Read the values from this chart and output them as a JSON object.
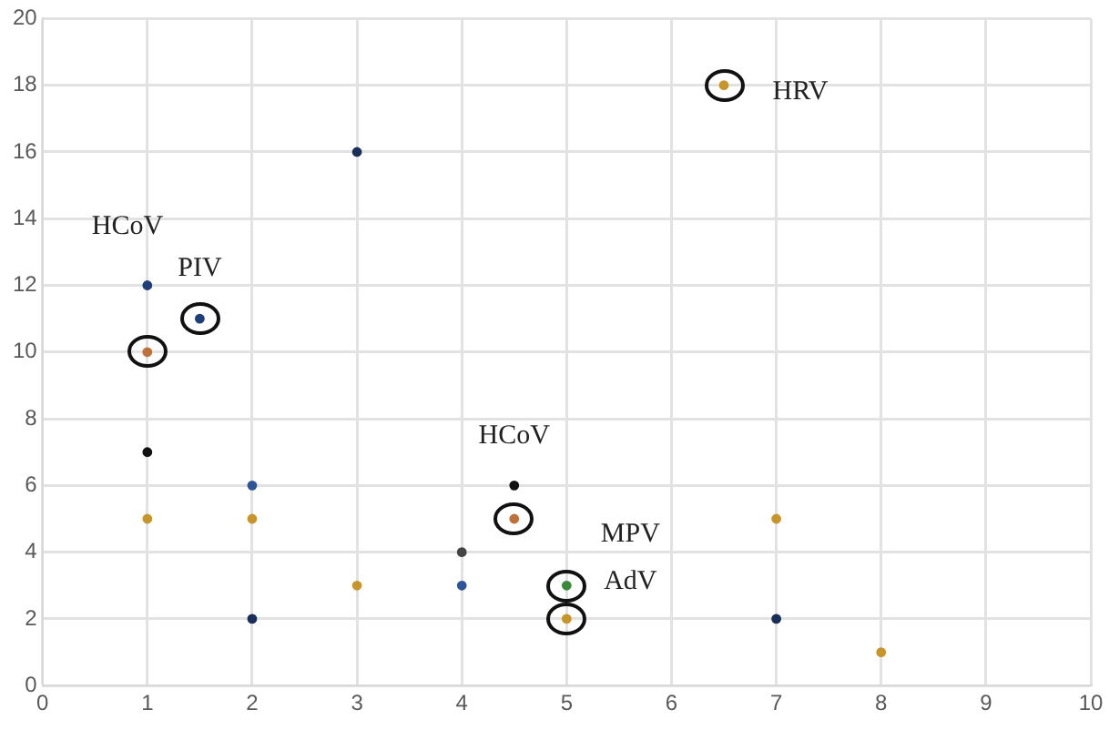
{
  "chart_data": {
    "type": "scatter",
    "xlim": [
      0,
      10
    ],
    "xticks": [
      0,
      1,
      2,
      3,
      4,
      5,
      6,
      7,
      8,
      9,
      10
    ],
    "ylim": [
      0,
      20
    ],
    "yticks": [
      0,
      2,
      4,
      6,
      8,
      10,
      12,
      14,
      16,
      18,
      20
    ],
    "grid": true,
    "legend": false,
    "marker": "circle",
    "series": [
      {
        "x": [
          1,
          1,
          1,
          2,
          2,
          2,
          3,
          3,
          4,
          4,
          4.5,
          7,
          7,
          8
        ],
        "values": [
          12,
          7,
          5,
          6,
          5,
          2,
          16,
          3,
          4,
          3,
          6,
          5,
          2,
          1
        ],
        "colors": [
          "#1f3f78",
          "#111111",
          "#c8952a",
          "#2f5597",
          "#c8952a",
          "#1a2e5a",
          "#1a2e5a",
          "#c8952a",
          "#444444",
          "#2f5597",
          "#111111",
          "#c8952a",
          "#1a2e5a",
          "#c8952a"
        ]
      },
      {
        "x": [
          1.5,
          1,
          4.5,
          5,
          5,
          6.5
        ],
        "values": [
          11,
          10,
          5,
          3,
          2,
          18
        ],
        "colors": [
          "#1f3f78",
          "#c0703a",
          "#c0703a",
          "#3a8a3a",
          "#c8952a",
          "#c8952a"
        ]
      }
    ],
    "annotations": [
      "HCoV",
      {
        "text": "PIV",
        "x": 1.5,
        "y": 11
      },
      {
        "text": "HCoV",
        "x": 4.5,
        "y": 5
      },
      {
        "text": "MPV",
        "x": 5,
        "y": 3
      },
      {
        "text": "AdV",
        "x": 5,
        "y": 2
      },
      {
        "text": "HRV",
        "x": 6.5,
        "y": 18
      }
    ]
  }
}
